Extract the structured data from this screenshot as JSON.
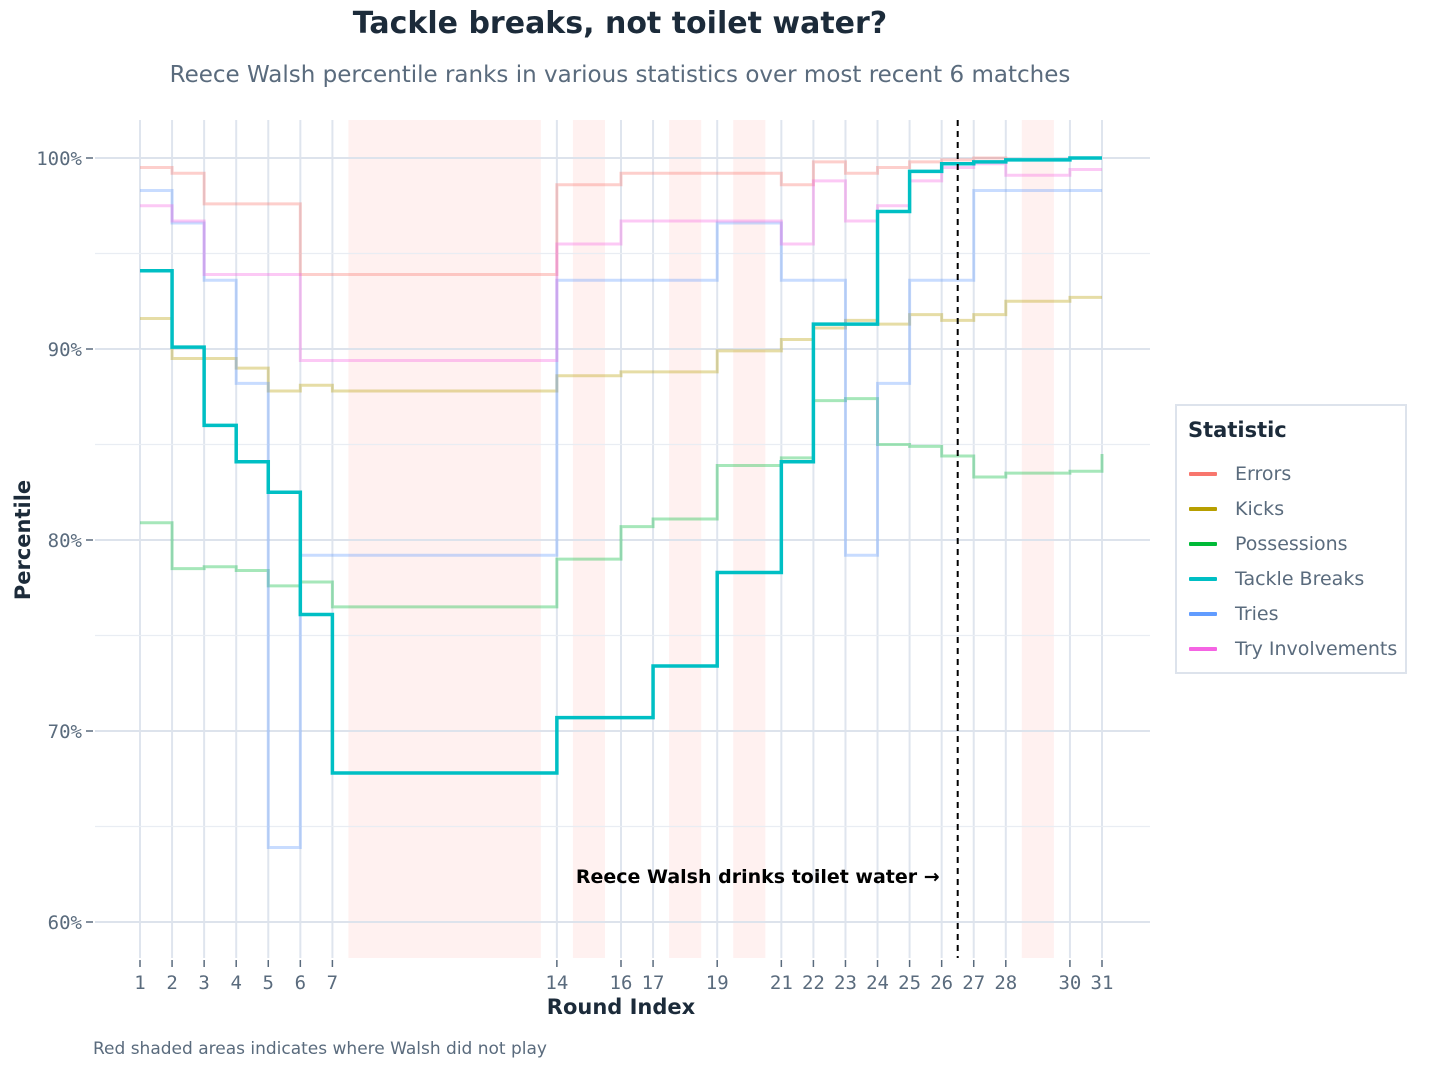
{
  "chart_data": {
    "type": "line",
    "title": "Tackle breaks, not toilet water?",
    "subtitle": "Reece Walsh percentile ranks in various statistics over most recent 6 matches",
    "xlabel": "Round Index",
    "ylabel": "Percentile",
    "caption": "Red shaded areas indicates where Walsh did not play",
    "x_ticks": [
      1,
      2,
      3,
      4,
      5,
      6,
      7,
      14,
      16,
      17,
      19,
      21,
      22,
      23,
      24,
      25,
      26,
      27,
      28,
      30,
      31
    ],
    "y_ticks": [
      60,
      70,
      80,
      90,
      100
    ],
    "y_tick_labels": [
      "60%",
      "70%",
      "80%",
      "90%",
      "100%"
    ],
    "ylim": [
      58,
      102
    ],
    "xlim": [
      1,
      31
    ],
    "grid": true,
    "legend_title": "Statistic",
    "legend_placement": "right",
    "annotation": {
      "text": "Reece Walsh drinks toilet water →",
      "vline_x": 26.5
    },
    "not_played_rounds": [
      [
        7.5,
        13.5
      ],
      [
        14.5,
        15.5
      ],
      [
        17.5,
        18.5
      ],
      [
        19.5,
        20.5
      ],
      [
        28.5,
        29.5
      ]
    ],
    "rounds": [
      1,
      2,
      3,
      4,
      5,
      6,
      7,
      14,
      16,
      17,
      19,
      21,
      22,
      23,
      24,
      25,
      26,
      27,
      28,
      30,
      31
    ],
    "series": [
      {
        "name": "Errors",
        "color": "#f8766d",
        "highlight": false,
        "values": [
          99.5,
          99.2,
          97.6,
          97.6,
          97.6,
          93.9,
          93.9,
          98.6,
          99.2,
          99.2,
          99.2,
          98.6,
          99.8,
          99.2,
          99.5,
          99.8,
          99.9,
          100,
          99.9,
          100,
          100
        ]
      },
      {
        "name": "Kicks",
        "color": "#b79f00",
        "highlight": false,
        "values": [
          91.6,
          89.5,
          89.5,
          89.0,
          87.8,
          88.1,
          87.8,
          88.6,
          88.8,
          88.8,
          89.9,
          90.5,
          91.1,
          91.5,
          91.3,
          91.8,
          91.5,
          91.8,
          92.5,
          92.7,
          92.7
        ]
      },
      {
        "name": "Possessions",
        "color": "#00ba38",
        "highlight": false,
        "values": [
          80.9,
          78.5,
          78.6,
          78.4,
          77.6,
          77.8,
          76.5,
          79.0,
          80.7,
          81.1,
          83.9,
          84.3,
          87.3,
          87.4,
          85.0,
          84.9,
          84.4,
          83.3,
          83.5,
          83.6,
          84.5
        ]
      },
      {
        "name": "Tackle Breaks",
        "color": "#00bfc4",
        "highlight": true,
        "values": [
          94.1,
          90.1,
          86.0,
          84.1,
          82.5,
          76.1,
          67.8,
          70.7,
          70.7,
          73.4,
          78.3,
          84.1,
          91.3,
          91.3,
          97.2,
          99.3,
          99.7,
          99.8,
          99.9,
          100,
          100
        ]
      },
      {
        "name": "Tries",
        "color": "#619cff",
        "highlight": false,
        "values": [
          98.3,
          96.6,
          93.6,
          88.2,
          63.9,
          79.2,
          79.2,
          93.6,
          93.6,
          93.6,
          96.6,
          93.6,
          93.6,
          79.2,
          88.2,
          93.6,
          93.6,
          98.3,
          98.3,
          98.3,
          98.3
        ]
      },
      {
        "name": "Try Involvements",
        "color": "#f564e3",
        "highlight": false,
        "values": [
          97.5,
          96.7,
          93.9,
          93.9,
          93.9,
          89.4,
          89.4,
          95.5,
          96.7,
          96.7,
          96.7,
          95.5,
          98.8,
          96.7,
          97.5,
          98.8,
          99.5,
          99.7,
          99.1,
          99.4,
          99.4
        ]
      }
    ]
  }
}
